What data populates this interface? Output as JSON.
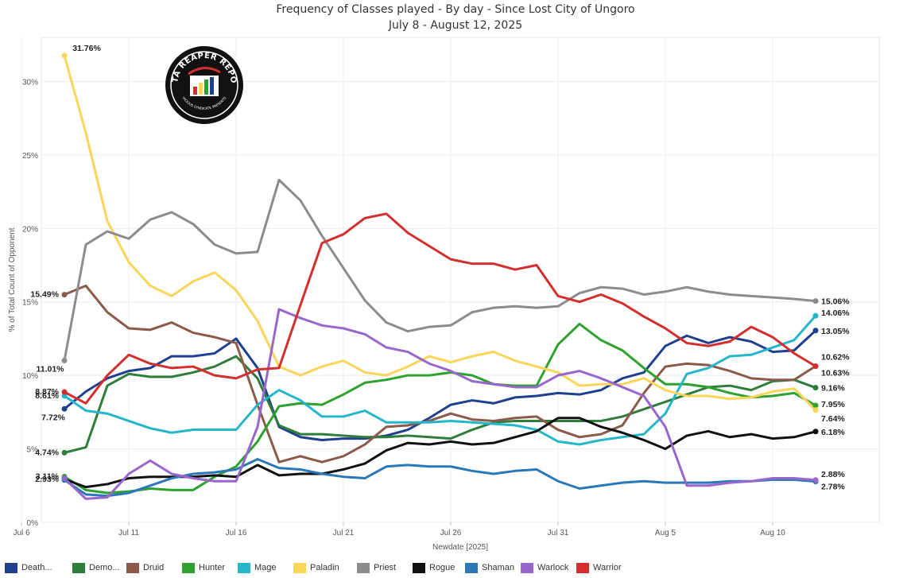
{
  "chart_data": {
    "type": "line",
    "title": "Frequency of Classes played - By day - Since Lost City of Ungoro",
    "subtitle": "July 8 - August 12, 2025",
    "xlabel": "Newdate [2025]",
    "ylabel": "% of Total Count of Opponent",
    "x_tick_labels": [
      "Jul 6",
      "Jul 11",
      "Jul 16",
      "Jul 21",
      "Jul 26",
      "Jul 31",
      "Aug 5",
      "Aug 10"
    ],
    "y_tick_labels": [
      "0%",
      "5%",
      "10%",
      "15%",
      "20%",
      "25%",
      "30%"
    ],
    "ylim": [
      0,
      33
    ],
    "grid": true,
    "legend_position": "bottom",
    "start_day_label": "Jul 8",
    "x": [
      "Jul 8",
      "Jul 9",
      "Jul 10",
      "Jul 11",
      "Jul 12",
      "Jul 13",
      "Jul 14",
      "Jul 15",
      "Jul 16",
      "Jul 17",
      "Jul 18",
      "Jul 19",
      "Jul 20",
      "Jul 21",
      "Jul 22",
      "Jul 23",
      "Jul 24",
      "Jul 25",
      "Jul 26",
      "Jul 27",
      "Jul 28",
      "Jul 29",
      "Jul 30",
      "Jul 31",
      "Aug 1",
      "Aug 2",
      "Aug 3",
      "Aug 4",
      "Aug 5",
      "Aug 6",
      "Aug 7",
      "Aug 8",
      "Aug 9",
      "Aug 10",
      "Aug 11",
      "Aug 12"
    ],
    "series": [
      {
        "name": "Death...",
        "color": "#1f3f8f",
        "values": [
          7.72,
          8.9,
          9.8,
          10.3,
          10.5,
          11.3,
          11.3,
          11.5,
          12.5,
          10.5,
          6.5,
          5.8,
          5.6,
          5.7,
          5.7,
          5.9,
          6.3,
          7.1,
          8.0,
          8.3,
          8.1,
          8.5,
          8.6,
          8.8,
          8.7,
          9.0,
          9.8,
          10.2,
          12.0,
          12.7,
          12.2,
          12.6,
          12.3,
          11.6,
          11.7,
          13.05
        ]
      },
      {
        "name": "Demo...",
        "color": "#2e7d3a",
        "values": [
          4.74,
          5.1,
          9.3,
          10.1,
          9.9,
          9.9,
          10.2,
          10.6,
          11.3,
          9.8,
          6.6,
          6.0,
          6.0,
          5.9,
          5.8,
          5.8,
          5.9,
          5.8,
          5.7,
          6.3,
          6.8,
          6.9,
          6.9,
          6.9,
          6.9,
          6.9,
          7.2,
          7.7,
          8.2,
          8.7,
          9.2,
          9.3,
          9.0,
          9.6,
          9.7,
          9.16
        ]
      },
      {
        "name": "Druid",
        "color": "#8b5a4a",
        "values": [
          15.49,
          16.1,
          14.3,
          13.2,
          13.1,
          13.6,
          12.9,
          12.6,
          12.2,
          8.0,
          4.1,
          4.5,
          4.1,
          4.5,
          5.3,
          6.5,
          6.6,
          6.9,
          7.4,
          7.0,
          6.9,
          7.1,
          7.2,
          6.3,
          5.8,
          6.0,
          6.6,
          8.8,
          10.6,
          10.8,
          10.7,
          10.3,
          9.8,
          9.7,
          9.7,
          10.63
        ]
      },
      {
        "name": "Hunter",
        "color": "#2fa12f",
        "values": [
          3.11,
          2.2,
          2.0,
          2.1,
          2.3,
          2.2,
          2.2,
          3.1,
          3.8,
          5.5,
          7.9,
          8.1,
          8.0,
          8.7,
          9.5,
          9.7,
          10.0,
          10.0,
          10.2,
          10.0,
          9.4,
          9.3,
          9.3,
          12.1,
          13.5,
          12.4,
          11.7,
          10.5,
          9.4,
          9.4,
          9.2,
          8.8,
          8.5,
          8.6,
          8.8,
          7.95
        ]
      },
      {
        "name": "Mage",
        "color": "#26b6c9",
        "values": [
          8.61,
          7.6,
          7.4,
          6.9,
          6.4,
          6.1,
          6.3,
          6.3,
          6.3,
          8.0,
          9.0,
          8.3,
          7.2,
          7.2,
          7.6,
          6.8,
          6.8,
          6.8,
          6.9,
          6.8,
          6.7,
          6.6,
          6.3,
          5.5,
          5.3,
          5.6,
          5.8,
          6.0,
          7.4,
          10.1,
          10.5,
          11.3,
          11.4,
          11.9,
          12.4,
          14.06
        ]
      },
      {
        "name": "Paladin",
        "color": "#f9d55a",
        "values": [
          31.76,
          26.5,
          20.5,
          17.7,
          16.1,
          15.4,
          16.4,
          17.0,
          15.8,
          13.7,
          10.6,
          10.0,
          10.6,
          11.0,
          10.2,
          10.0,
          10.6,
          11.3,
          10.9,
          11.3,
          11.6,
          11.0,
          10.6,
          10.2,
          9.3,
          9.4,
          9.4,
          9.8,
          9.0,
          8.6,
          8.6,
          8.4,
          8.5,
          8.9,
          9.1,
          7.64
        ]
      },
      {
        "name": "Priest",
        "color": "#8c8c8c",
        "values": [
          11.01,
          18.9,
          19.8,
          19.3,
          20.6,
          21.1,
          20.3,
          18.9,
          18.3,
          18.4,
          23.3,
          21.9,
          19.5,
          17.3,
          15.1,
          13.6,
          13.0,
          13.3,
          13.4,
          14.3,
          14.6,
          14.7,
          14.6,
          14.7,
          15.6,
          16.0,
          15.9,
          15.5,
          15.7,
          16.0,
          15.7,
          15.5,
          15.4,
          15.3,
          15.2,
          15.06
        ]
      },
      {
        "name": "Rogue",
        "color": "#111111",
        "values": [
          2.93,
          2.4,
          2.6,
          3.0,
          3.1,
          3.1,
          3.1,
          3.2,
          3.1,
          3.9,
          3.2,
          3.3,
          3.3,
          3.6,
          4.0,
          4.9,
          5.4,
          5.3,
          5.5,
          5.3,
          5.4,
          5.8,
          6.2,
          7.1,
          7.1,
          6.5,
          6.1,
          5.6,
          5.0,
          5.9,
          6.2,
          5.8,
          6.0,
          5.7,
          5.8,
          6.18
        ]
      },
      {
        "name": "Shaman",
        "color": "#2a78b8",
        "values": [
          2.88,
          1.9,
          1.8,
          2.0,
          2.5,
          3.0,
          3.3,
          3.4,
          3.6,
          4.3,
          3.7,
          3.6,
          3.3,
          3.1,
          3.0,
          3.8,
          3.9,
          3.8,
          3.8,
          3.5,
          3.3,
          3.5,
          3.6,
          2.8,
          2.3,
          2.5,
          2.7,
          2.8,
          2.7,
          2.7,
          2.7,
          2.8,
          2.8,
          2.9,
          2.9,
          2.78
        ]
      },
      {
        "name": "Warlock",
        "color": "#9966cc",
        "values": [
          3.0,
          1.6,
          1.7,
          3.3,
          4.2,
          3.3,
          3.0,
          2.8,
          2.8,
          6.5,
          14.5,
          13.9,
          13.4,
          13.2,
          12.8,
          11.9,
          11.6,
          10.8,
          10.3,
          9.6,
          9.4,
          9.2,
          9.2,
          10.0,
          10.3,
          9.8,
          9.2,
          8.6,
          6.5,
          2.5,
          2.5,
          2.7,
          2.8,
          3.0,
          3.0,
          2.88
        ]
      },
      {
        "name": "Warrior",
        "color": "#d32f2f",
        "values": [
          8.87,
          8.1,
          10.0,
          11.4,
          10.8,
          10.5,
          10.6,
          10.0,
          9.8,
          10.4,
          10.5,
          14.8,
          19.0,
          19.6,
          20.7,
          21.0,
          19.7,
          18.8,
          17.9,
          17.6,
          17.6,
          17.2,
          17.5,
          15.4,
          15.0,
          15.5,
          14.9,
          14.0,
          13.2,
          12.2,
          12.0,
          12.3,
          13.3,
          12.6,
          11.5,
          10.62
        ]
      }
    ],
    "start_labels": [
      {
        "series": "Paladin",
        "text": "31.76%",
        "anchor": "above"
      },
      {
        "series": "Druid",
        "text": "15.49%",
        "anchor": "left"
      },
      {
        "series": "Priest",
        "text": "11.01%",
        "anchor": "below"
      },
      {
        "series": "Warrior",
        "text": "8.87%",
        "anchor": "left"
      },
      {
        "series": "Mage",
        "text": "8.61%",
        "anchor": "left"
      },
      {
        "series": "Death...",
        "text": "7.72%",
        "anchor": "below-left"
      },
      {
        "series": "Demo...",
        "text": "4.74%",
        "anchor": "left"
      },
      {
        "series": "Hunter",
        "text": "3.11%",
        "anchor": "left"
      },
      {
        "series": "Rogue",
        "text": "2.93%",
        "anchor": "left"
      }
    ],
    "end_labels": [
      {
        "series": "Priest",
        "text": "15.06%",
        "dy": 0
      },
      {
        "series": "Mage",
        "text": "14.06%",
        "dy": -4
      },
      {
        "series": "Death...",
        "text": "13.05%",
        "dy": 0
      },
      {
        "series": "Warrior",
        "text": "10.62%",
        "dy": -12
      },
      {
        "series": "Druid",
        "text": "10.63%",
        "dy": 8
      },
      {
        "series": "Demo...",
        "text": "9.16%",
        "dy": 0
      },
      {
        "series": "Hunter",
        "text": "7.95%",
        "dy": -2
      },
      {
        "series": "Paladin",
        "text": "7.64%",
        "dy": 10
      },
      {
        "series": "Rogue",
        "text": "6.18%",
        "dy": 0
      },
      {
        "series": "Warlock",
        "text": "2.88%",
        "dy": -8
      },
      {
        "series": "Shaman",
        "text": "2.78%",
        "dy": 6
      }
    ]
  },
  "logo": {
    "text_top": "DATA REAPER REPORT",
    "text_bottom": "VICIOUS SYNDICATE PRESENTS"
  }
}
